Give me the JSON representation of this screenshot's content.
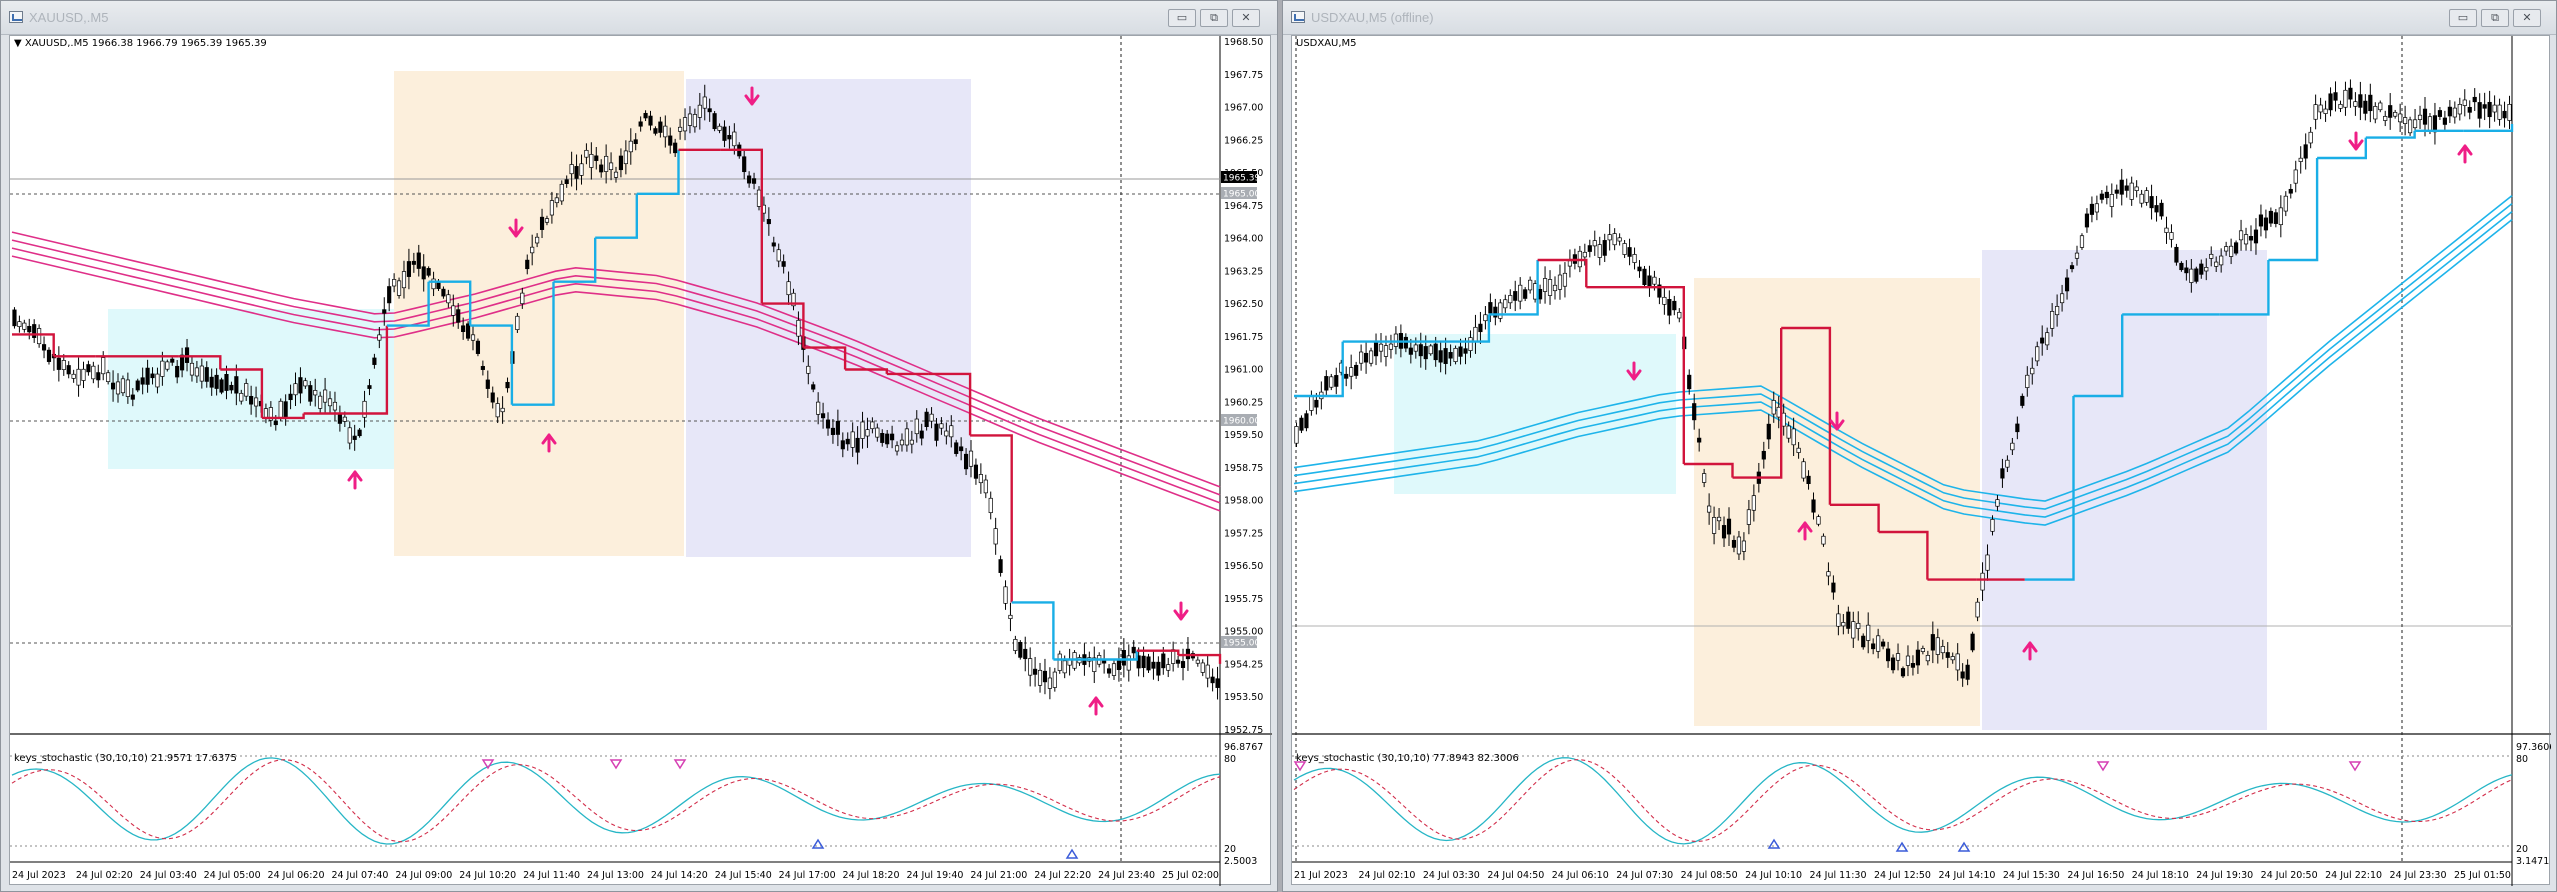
{
  "left": {
    "window_title": "XAUUSD,.M5",
    "symbol_info": "▼ XAUUSD,.M5  1966.38 1966.79 1965.39 1965.39",
    "price_ticks": [
      "1968.50",
      "1967.75",
      "1967.00",
      "1966.25",
      "1965.50",
      "1964.75",
      "1964.00",
      "1963.25",
      "1962.50",
      "1961.75",
      "1961.00",
      "1960.25",
      "1959.50",
      "1958.75",
      "1958.00",
      "1957.25",
      "1956.50",
      "1955.75",
      "1955.00",
      "1954.25",
      "1953.50",
      "1952.75"
    ],
    "price_labels": [
      "1965.39",
      "1965.00",
      "1960.00",
      "1955.00"
    ],
    "indicator_name": "keys_stochastic (30,10,10) 21.9571 17.6375",
    "indicator_ticks": [
      "96.8767",
      "80",
      "20",
      "2.5003"
    ],
    "time_labels": [
      "24 Jul 2023",
      "24 Jul 02:20",
      "24 Jul 03:40",
      "24 Jul 05:00",
      "24 Jul 06:20",
      "24 Jul 07:40",
      "24 Jul 09:00",
      "24 Jul 10:20",
      "24 Jul 11:40",
      "24 Jul 13:00",
      "24 Jul 14:20",
      "24 Jul 15:40",
      "24 Jul 17:00",
      "24 Jul 18:20",
      "24 Jul 19:40",
      "24 Jul 21:00",
      "24 Jul 22:20",
      "24 Jul 23:40",
      "25 Jul 02:00"
    ]
  },
  "right": {
    "window_title": "USDXAU,M5 (offline)",
    "symbol_info": "USDXAU,M5",
    "indicator_name": "keys_stochastic (30,10,10) 77.8943 82.3006",
    "indicator_ticks": [
      "97.3606",
      "80",
      "20",
      "3.1471"
    ],
    "time_labels": [
      "21 Jul 2023",
      "24 Jul 02:10",
      "24 Jul 03:30",
      "24 Jul 04:50",
      "24 Jul 06:10",
      "24 Jul 07:30",
      "24 Jul 08:50",
      "24 Jul 10:10",
      "24 Jul 11:30",
      "24 Jul 12:50",
      "24 Jul 14:10",
      "24 Jul 15:30",
      "24 Jul 16:50",
      "24 Jul 18:10",
      "24 Jul 19:30",
      "24 Jul 20:50",
      "24 Jul 22:10",
      "24 Jul 23:30",
      "25 Jul 01:50"
    ]
  },
  "buttons": {
    "minimize": "▭",
    "restore": "⧉",
    "close": "✕"
  },
  "colors": {
    "candle": "#000000",
    "stop_line_red": "#d1143c",
    "stop_line_blue": "#19aee6",
    "ema_magenta": "#df2f88",
    "ema_blue": "#1eb4ea",
    "zone_cyan": "#dff9fb",
    "zone_orange": "#fcefdc",
    "zone_lavender": "#e7e7f8",
    "arrow": "#ef1e86",
    "stoch_main": "#27b6c6",
    "stoch_signal": "#d22d4a"
  },
  "chart_data": [
    {
      "type": "candlestick",
      "symbol": "XAUUSD,.M5",
      "ylim": [
        1952.75,
        1968.5
      ],
      "ohlc_current": {
        "open": 1966.38,
        "high": 1966.79,
        "low": 1965.39,
        "close": 1965.39
      },
      "series": [
        {
          "name": "price_path",
          "values": [
            1962.3,
            1961.5,
            1960.9,
            1961.0,
            1960.4,
            1960.9,
            1961.2,
            1960.8,
            1960.5,
            1959.8,
            1960.6,
            1960.2,
            1959.3,
            1962.6,
            1963.5,
            1962.6,
            1961.7,
            1960.0,
            1963.6,
            1965.1,
            1965.8,
            1965.5,
            1966.7,
            1966.1,
            1967.0,
            1966.3,
            1964.9,
            1963.0,
            1960.2,
            1959.3,
            1959.6,
            1959.3,
            1959.8,
            1959.3,
            1958.1,
            1954.6,
            1953.9,
            1954.5,
            1954.2,
            1954.5,
            1954.3,
            1954.4,
            1954.0
          ]
        },
        {
          "name": "stop_line",
          "values": [
            1961.8,
            1961.3,
            1961.3,
            1961.3,
            1961.3,
            1961.0,
            1959.9,
            1960.0,
            1960.0,
            1962.0,
            1963.0,
            1962.0,
            1960.2,
            1963.0,
            1964.0,
            1965.0,
            1966.0,
            1966.0,
            1962.5,
            1961.5,
            1961.0,
            1960.9,
            1960.9,
            1959.5,
            1955.7,
            1954.4,
            1954.4,
            1954.6,
            1954.5,
            1954.3
          ]
        },
        {
          "name": "ema_band",
          "values": [
            1963.9,
            1963.4,
            1962.9,
            1962.4,
            1962.0,
            1962.5,
            1963.1,
            1962.9,
            1962.3,
            1961.5,
            1960.6,
            1959.7,
            1958.9,
            1958.1
          ]
        }
      ]
    },
    {
      "type": "candlestick",
      "symbol": "USDXAU,M5",
      "series": [
        {
          "name": "price_path",
          "values": [
            0.45,
            0.52,
            0.55,
            0.58,
            0.57,
            0.55,
            0.62,
            0.65,
            0.66,
            0.71,
            0.73,
            0.67,
            0.62,
            0.32,
            0.28,
            0.49,
            0.39,
            0.17,
            0.14,
            0.1,
            0.13,
            0.09,
            0.36,
            0.53,
            0.65,
            0.78,
            0.81,
            0.78,
            0.67,
            0.71,
            0.74,
            0.78,
            0.92,
            0.94,
            0.92,
            0.9,
            0.91,
            0.93,
            0.92
          ]
        },
        {
          "name": "stop_line",
          "values": [
            0.5,
            0.58,
            0.58,
            0.58,
            0.62,
            0.7,
            0.66,
            0.66,
            0.4,
            0.38,
            0.6,
            0.34,
            0.3,
            0.23,
            0.23,
            0.23,
            0.5,
            0.62,
            0.62,
            0.62,
            0.7,
            0.85,
            0.88,
            0.89,
            0.89,
            0.9
          ]
        },
        {
          "name": "ema_band",
          "values": [
            0.38,
            0.4,
            0.42,
            0.46,
            0.49,
            0.5,
            0.42,
            0.35,
            0.33,
            0.38,
            0.44,
            0.56,
            0.67,
            0.78
          ]
        }
      ]
    }
  ]
}
